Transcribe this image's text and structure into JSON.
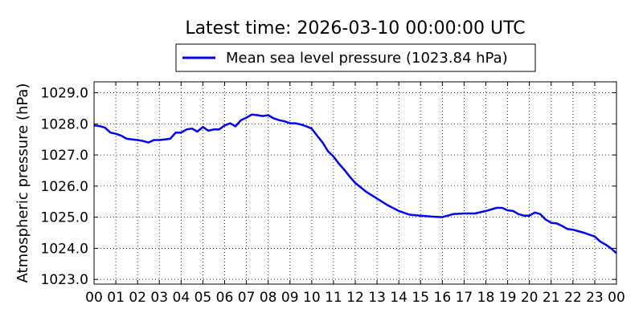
{
  "chart_data": {
    "type": "line",
    "title": "Latest time: 2026-03-10 00:00:00 UTC",
    "xlabel": "",
    "ylabel": "Atmospheric pressure (hPa)",
    "x_tick_labels": [
      "00",
      "01",
      "02",
      "03",
      "04",
      "05",
      "06",
      "07",
      "08",
      "09",
      "10",
      "11",
      "12",
      "13",
      "14",
      "15",
      "16",
      "17",
      "18",
      "19",
      "20",
      "21",
      "22",
      "23",
      "00"
    ],
    "xlim": [
      0,
      24
    ],
    "ylim": [
      1022.85,
      1029.35
    ],
    "y_ticks": [
      1023.0,
      1024.0,
      1025.0,
      1026.0,
      1027.0,
      1028.0,
      1029.0
    ],
    "y_tick_labels": [
      "1023.0",
      "1024.0",
      "1025.0",
      "1026.0",
      "1027.0",
      "1028.0",
      "1029.0"
    ],
    "grid": true,
    "legend_position": "top-center (outside plot)",
    "series": [
      {
        "name": "Mean sea level pressure (1023.84 hPa)",
        "color": "#0000ff",
        "x": [
          0.0,
          0.25,
          0.5,
          0.75,
          1.0,
          1.25,
          1.5,
          1.75,
          2.0,
          2.25,
          2.5,
          2.75,
          3.0,
          3.25,
          3.5,
          3.75,
          4.0,
          4.25,
          4.5,
          4.75,
          5.0,
          5.25,
          5.5,
          5.75,
          6.0,
          6.25,
          6.5,
          6.75,
          7.0,
          7.25,
          7.5,
          7.75,
          8.0,
          8.25,
          8.5,
          8.75,
          9.0,
          9.25,
          9.5,
          9.75,
          10.0,
          10.25,
          10.5,
          10.75,
          11.0,
          11.25,
          11.5,
          11.75,
          12.0,
          12.5,
          13.0,
          13.5,
          14.0,
          14.5,
          15.0,
          15.5,
          16.0,
          16.5,
          17.0,
          17.5,
          18.0,
          18.5,
          18.75,
          19.0,
          19.25,
          19.5,
          19.75,
          20.0,
          20.25,
          20.5,
          20.75,
          21.0,
          21.25,
          21.5,
          21.75,
          22.0,
          22.5,
          23.0,
          23.25,
          23.5,
          23.75,
          24.0
        ],
        "y": [
          1027.95,
          1027.93,
          1027.88,
          1027.72,
          1027.68,
          1027.62,
          1027.52,
          1027.5,
          1027.48,
          1027.45,
          1027.4,
          1027.48,
          1027.48,
          1027.5,
          1027.52,
          1027.72,
          1027.72,
          1027.82,
          1027.85,
          1027.75,
          1027.9,
          1027.78,
          1027.82,
          1027.82,
          1027.95,
          1028.02,
          1027.92,
          1028.12,
          1028.2,
          1028.3,
          1028.28,
          1028.25,
          1028.28,
          1028.18,
          1028.12,
          1028.08,
          1028.02,
          1028.02,
          1027.98,
          1027.92,
          1027.85,
          1027.62,
          1027.4,
          1027.12,
          1026.95,
          1026.72,
          1026.52,
          1026.3,
          1026.1,
          1025.82,
          1025.6,
          1025.38,
          1025.2,
          1025.08,
          1025.05,
          1025.02,
          1025.0,
          1025.1,
          1025.12,
          1025.12,
          1025.2,
          1025.3,
          1025.3,
          1025.22,
          1025.2,
          1025.1,
          1025.05,
          1025.05,
          1025.15,
          1025.1,
          1024.92,
          1024.82,
          1024.8,
          1024.72,
          1024.62,
          1024.6,
          1024.5,
          1024.38,
          1024.22,
          1024.12,
          1024.0,
          1023.84
        ]
      }
    ]
  }
}
